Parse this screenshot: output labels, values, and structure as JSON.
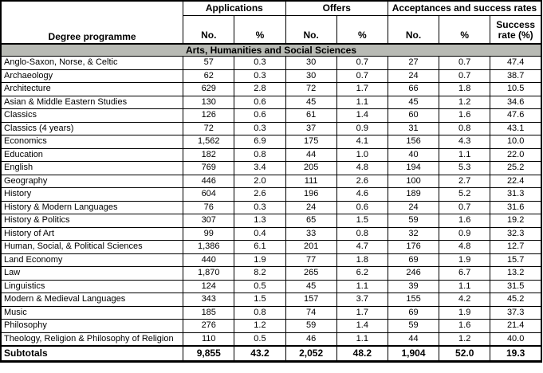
{
  "table": {
    "degree_col_header": "Degree programme",
    "groups": [
      {
        "label": "Applications"
      },
      {
        "label": "Offers"
      },
      {
        "label": "Acceptances and success rates"
      }
    ],
    "sub_headers": [
      "No.",
      "%",
      "No.",
      "%",
      "No.",
      "%",
      "Success rate (%)"
    ],
    "section_header": "Arts, Humanities and Social Sciences",
    "rows": [
      {
        "programme": "Anglo-Saxon, Norse, & Celtic",
        "values": [
          "57",
          "0.3",
          "30",
          "0.7",
          "27",
          "0.7",
          "47.4"
        ]
      },
      {
        "programme": "Archaeology",
        "values": [
          "62",
          "0.3",
          "30",
          "0.7",
          "24",
          "0.7",
          "38.7"
        ]
      },
      {
        "programme": "Architecture",
        "values": [
          "629",
          "2.8",
          "72",
          "1.7",
          "66",
          "1.8",
          "10.5"
        ]
      },
      {
        "programme": "Asian & Middle Eastern Studies",
        "values": [
          "130",
          "0.6",
          "45",
          "1.1",
          "45",
          "1.2",
          "34.6"
        ]
      },
      {
        "programme": "Classics",
        "values": [
          "126",
          "0.6",
          "61",
          "1.4",
          "60",
          "1.6",
          "47.6"
        ]
      },
      {
        "programme": "Classics (4 years)",
        "values": [
          "72",
          "0.3",
          "37",
          "0.9",
          "31",
          "0.8",
          "43.1"
        ]
      },
      {
        "programme": "Economics",
        "values": [
          "1,562",
          "6.9",
          "175",
          "4.1",
          "156",
          "4.3",
          "10.0"
        ]
      },
      {
        "programme": "Education",
        "values": [
          "182",
          "0.8",
          "44",
          "1.0",
          "40",
          "1.1",
          "22.0"
        ]
      },
      {
        "programme": "English",
        "values": [
          "769",
          "3.4",
          "205",
          "4.8",
          "194",
          "5.3",
          "25.2"
        ]
      },
      {
        "programme": "Geography",
        "values": [
          "446",
          "2.0",
          "111",
          "2.6",
          "100",
          "2.7",
          "22.4"
        ]
      },
      {
        "programme": "History",
        "values": [
          "604",
          "2.6",
          "196",
          "4.6",
          "189",
          "5.2",
          "31.3"
        ]
      },
      {
        "programme": "History & Modern Languages",
        "values": [
          "76",
          "0.3",
          "24",
          "0.6",
          "24",
          "0.7",
          "31.6"
        ]
      },
      {
        "programme": "History & Politics",
        "values": [
          "307",
          "1.3",
          "65",
          "1.5",
          "59",
          "1.6",
          "19.2"
        ]
      },
      {
        "programme": "History of Art",
        "values": [
          "99",
          "0.4",
          "33",
          "0.8",
          "32",
          "0.9",
          "32.3"
        ]
      },
      {
        "programme": "Human, Social, & Political Sciences",
        "values": [
          "1,386",
          "6.1",
          "201",
          "4.7",
          "176",
          "4.8",
          "12.7"
        ]
      },
      {
        "programme": "Land Economy",
        "values": [
          "440",
          "1.9",
          "77",
          "1.8",
          "69",
          "1.9",
          "15.7"
        ]
      },
      {
        "programme": "Law",
        "values": [
          "1,870",
          "8.2",
          "265",
          "6.2",
          "246",
          "6.7",
          "13.2"
        ]
      },
      {
        "programme": "Linguistics",
        "values": [
          "124",
          "0.5",
          "45",
          "1.1",
          "39",
          "1.1",
          "31.5"
        ]
      },
      {
        "programme": "Modern & Medieval Languages",
        "values": [
          "343",
          "1.5",
          "157",
          "3.7",
          "155",
          "4.2",
          "45.2"
        ]
      },
      {
        "programme": "Music",
        "values": [
          "185",
          "0.8",
          "74",
          "1.7",
          "69",
          "1.9",
          "37.3"
        ]
      },
      {
        "programme": "Philosophy",
        "values": [
          "276",
          "1.2",
          "59",
          "1.4",
          "59",
          "1.6",
          "21.4"
        ]
      },
      {
        "programme": "Theology, Religion & Philosophy of Religion",
        "values": [
          "110",
          "0.5",
          "46",
          "1.1",
          "44",
          "1.2",
          "40.0"
        ]
      }
    ],
    "subtotals": {
      "label": "Subtotals",
      "values": [
        "9,855",
        "43.2",
        "2,052",
        "48.2",
        "1,904",
        "52.0",
        "19.3"
      ]
    }
  },
  "colors": {
    "section_bg": "#b8bab4",
    "border": "#000000",
    "text": "#000000"
  }
}
